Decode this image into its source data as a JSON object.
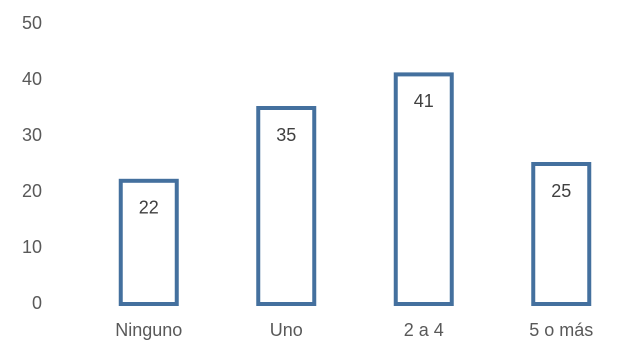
{
  "chart_data": {
    "type": "bar",
    "title": "",
    "xlabel": "",
    "ylabel": "",
    "categories": [
      "Ninguno",
      "Uno",
      "2 a 4",
      "5 o más"
    ],
    "values": [
      22,
      35,
      41,
      25
    ],
    "data_labels": [
      "22",
      "35",
      "41",
      "25"
    ],
    "ylim": [
      0,
      50
    ],
    "yticks": [
      0,
      10,
      20,
      30,
      40,
      50
    ],
    "ytick_labels": [
      "0",
      "10",
      "20",
      "30",
      "40",
      "50"
    ],
    "grid": false,
    "legend": "none",
    "bar_style": "outline",
    "colors": {
      "bar_stroke": "#44709e",
      "bar_fill": "#ffffff",
      "axis_text": "#595959",
      "label_text": "#404040"
    }
  }
}
